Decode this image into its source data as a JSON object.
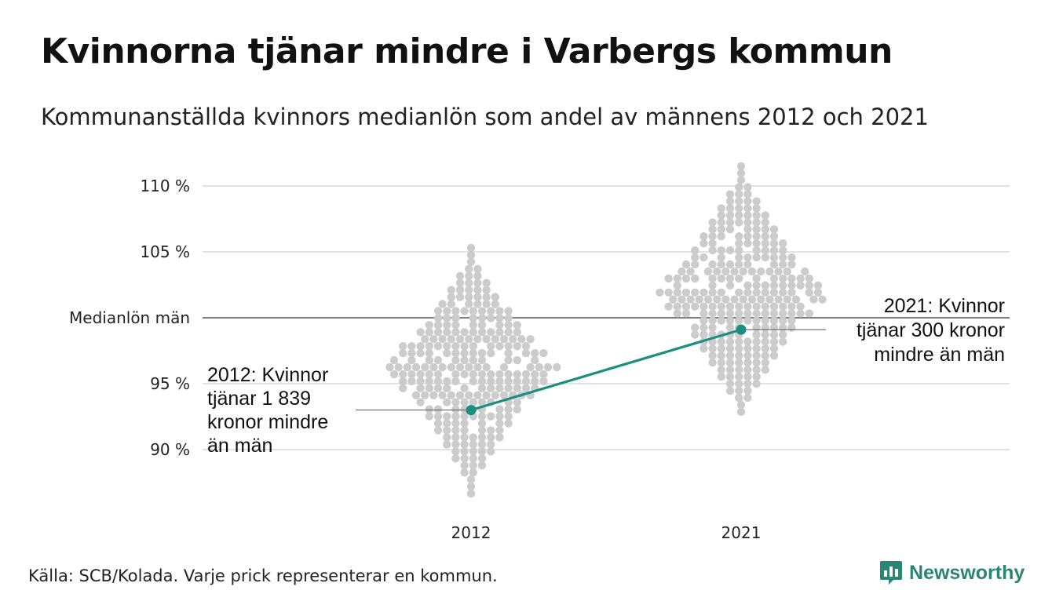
{
  "title": "Kvinnorna tjänar mindre i Varbergs kommun",
  "subtitle": "Kommunanställda kvinnors medianlön som andel av männens 2012 och 2021",
  "source": "Källa: SCB/Kolada. Varje prick representerar en kommun.",
  "brand": {
    "name": "Newsworthy",
    "icon": "newsworthy-logo-icon",
    "color": "#2b8575"
  },
  "chart_data": {
    "type": "scatter",
    "subtype": "beeswarm",
    "categories": [
      "2012",
      "2021"
    ],
    "y_ticks": [
      {
        "value": 90,
        "label": "90 %"
      },
      {
        "value": 95,
        "label": "95 %"
      },
      {
        "value": 100,
        "label": "Medianlön män"
      },
      {
        "value": 105,
        "label": "105 %"
      },
      {
        "value": 110,
        "label": "110 %"
      }
    ],
    "ylim": [
      85.8,
      112.2
    ],
    "grid": true,
    "reference_line": {
      "value": 100,
      "label": "Medianlön män"
    },
    "distribution": {
      "2012": {
        "median": 96.3,
        "min": 86.6,
        "max": 105.3,
        "count": 290,
        "dot_color": "#cccccc"
      },
      "2021": {
        "median": 101.7,
        "min": 92.6,
        "max": 111.5,
        "count": 290,
        "dot_color": "#cccccc"
      }
    },
    "highlight": {
      "name": "Varberg",
      "color": "#1a8f80",
      "points": [
        {
          "x": "2012",
          "y": 93.0
        },
        {
          "x": "2021",
          "y": 99.1
        }
      ]
    },
    "annotations": [
      {
        "x": "2012",
        "lines": [
          "2012: Kvinnor",
          "tjänar 1 839",
          "kronor mindre",
          "än män"
        ]
      },
      {
        "x": "2021",
        "lines": [
          "2021: Kvinnor",
          "tjänar 300 kronor",
          "mindre än män"
        ]
      }
    ]
  }
}
